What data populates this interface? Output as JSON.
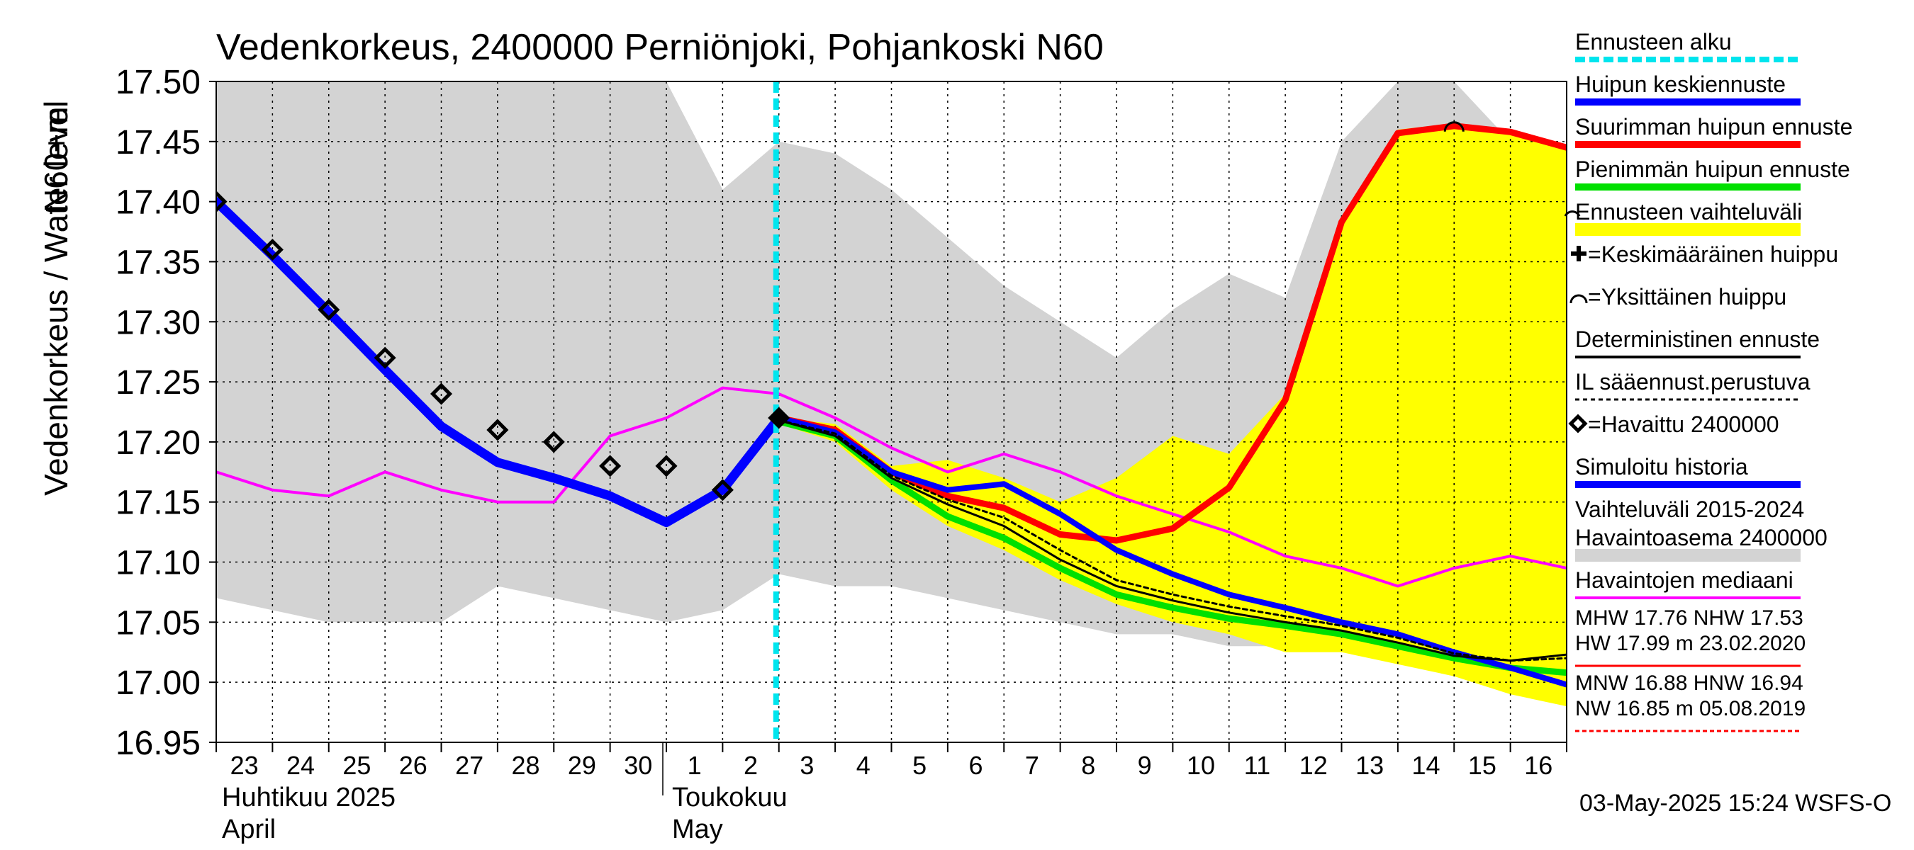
{
  "chart_data": {
    "type": "line",
    "title": "Vedenkorkeus, 2400000 Perniönjoki, Pohjankoski N60",
    "ylabel_lines": [
      "Vedenkorkeus / Water level",
      "N60+m"
    ],
    "ylim": [
      16.95,
      17.5
    ],
    "y_ticks": [
      "17.50",
      "17.45",
      "17.40",
      "17.35",
      "17.30",
      "17.25",
      "17.20",
      "17.15",
      "17.10",
      "17.05",
      "17.00",
      "16.95"
    ],
    "x_days": [
      "23",
      "24",
      "25",
      "26",
      "27",
      "28",
      "29",
      "30",
      "1",
      "2",
      "3",
      "4",
      "5",
      "6",
      "7",
      "8",
      "9",
      "10",
      "11",
      "12",
      "13",
      "14",
      "15",
      "16"
    ],
    "month_labels": [
      {
        "fi": "Huhtikuu  2025",
        "en": "April",
        "start_index": 0
      },
      {
        "fi": "Toukokuu",
        "en": "May",
        "start_index": 8
      }
    ],
    "forecast_start_x": 9.95,
    "range_band": {
      "x": [
        0,
        1,
        2,
        3,
        4,
        5,
        6,
        7,
        8,
        9,
        10,
        11,
        12,
        13,
        14,
        15,
        16,
        17,
        18,
        19,
        20,
        21,
        22,
        23,
        24
      ],
      "upper": [
        17.5,
        17.5,
        17.5,
        17.5,
        17.5,
        17.5,
        17.5,
        17.5,
        17.5,
        17.41,
        17.45,
        17.44,
        17.41,
        17.37,
        17.33,
        17.3,
        17.27,
        17.31,
        17.34,
        17.32,
        17.45,
        17.5,
        17.5,
        17.45,
        17.4
      ],
      "lower": [
        17.07,
        17.06,
        17.05,
        17.05,
        17.05,
        17.08,
        17.07,
        17.06,
        17.05,
        17.06,
        17.09,
        17.08,
        17.08,
        17.07,
        17.06,
        17.05,
        17.04,
        17.04,
        17.03,
        17.03,
        17.03,
        17.03,
        17.02,
        17.02,
        17.02
      ]
    },
    "forecast_band": {
      "x": [
        10,
        11,
        12,
        13,
        14,
        15,
        16,
        17,
        18,
        19,
        20,
        21,
        22,
        23,
        24
      ],
      "upper": [
        17.22,
        17.215,
        17.18,
        17.185,
        17.17,
        17.15,
        17.17,
        17.205,
        17.19,
        17.24,
        17.38,
        17.46,
        17.465,
        17.46,
        17.445
      ],
      "lower": [
        17.215,
        17.2,
        17.16,
        17.13,
        17.11,
        17.085,
        17.065,
        17.05,
        17.04,
        17.025,
        17.025,
        17.015,
        17.005,
        16.99,
        16.98
      ]
    },
    "series": [
      {
        "name": "Havaittu 2400000",
        "role": "observed",
        "color": "#000000",
        "x": [
          0,
          1,
          2,
          3,
          4,
          5,
          6,
          7,
          8,
          9,
          10
        ],
        "y": [
          17.4,
          17.36,
          17.31,
          17.27,
          17.24,
          17.21,
          17.2,
          17.18,
          17.18,
          17.16,
          17.22
        ]
      },
      {
        "name": "Havaintojen mediaani",
        "role": "median",
        "color": "#ff00ff",
        "x": [
          0,
          1,
          2,
          3,
          4,
          5,
          6,
          7,
          8,
          9,
          10,
          11,
          12,
          13,
          14,
          15,
          16,
          17,
          18,
          19,
          20,
          21,
          22,
          23,
          24
        ],
        "y": [
          17.175,
          17.16,
          17.155,
          17.175,
          17.16,
          17.15,
          17.15,
          17.205,
          17.22,
          17.245,
          17.24,
          17.22,
          17.195,
          17.175,
          17.19,
          17.175,
          17.155,
          17.14,
          17.125,
          17.105,
          17.095,
          17.08,
          17.095,
          17.105,
          17.095
        ]
      },
      {
        "name": "Pienimmän huipun ennuste",
        "role": "min-peak",
        "color": "#00e000",
        "x": [
          10,
          11,
          12,
          13,
          14,
          15,
          16,
          17,
          18,
          19,
          20,
          21,
          22,
          23,
          24
        ],
        "y": [
          17.217,
          17.205,
          17.168,
          17.138,
          17.12,
          17.095,
          17.073,
          17.062,
          17.053,
          17.047,
          17.04,
          17.03,
          17.02,
          17.012,
          17.008
        ]
      },
      {
        "name": "Suurimman huipun ennuste",
        "role": "max-peak",
        "color": "#ff0000",
        "x": [
          10,
          11,
          12,
          13,
          14,
          15,
          16,
          17,
          18,
          19,
          20,
          21,
          22,
          23,
          24
        ],
        "y": [
          17.22,
          17.21,
          17.175,
          17.155,
          17.145,
          17.123,
          17.118,
          17.128,
          17.162,
          17.235,
          17.383,
          17.457,
          17.463,
          17.458,
          17.445
        ]
      },
      {
        "name": "Simuloitu historia",
        "role": "simulated",
        "color": "#0000ff",
        "x": [
          0,
          1,
          2,
          3,
          4,
          5,
          6,
          7,
          8,
          9,
          10
        ],
        "y": [
          17.4,
          17.355,
          17.308,
          17.26,
          17.213,
          17.183,
          17.17,
          17.155,
          17.133,
          17.16,
          17.22
        ]
      },
      {
        "name": "Huipun keskiennuste",
        "role": "mean-peak",
        "color": "#0000ff",
        "x": [
          10,
          11,
          12,
          13,
          14,
          15,
          16,
          17,
          18,
          19,
          20,
          21,
          22,
          23,
          24
        ],
        "y": [
          17.22,
          17.208,
          17.175,
          17.16,
          17.165,
          17.14,
          17.11,
          17.09,
          17.073,
          17.062,
          17.05,
          17.04,
          17.025,
          17.012,
          16.998
        ]
      },
      {
        "name": "Deterministinen ennuste",
        "role": "deterministic",
        "color": "#000000",
        "x": [
          10,
          11,
          12,
          13,
          14,
          15,
          16,
          17,
          18,
          19,
          20,
          21,
          22,
          23,
          24
        ],
        "y": [
          17.218,
          17.205,
          17.17,
          17.148,
          17.13,
          17.102,
          17.08,
          17.068,
          17.058,
          17.05,
          17.043,
          17.033,
          17.022,
          17.018,
          17.023
        ]
      },
      {
        "name": "IL sääennust.perustuva",
        "role": "weather-based",
        "color": "#000000",
        "x": [
          10,
          11,
          12,
          13,
          14,
          15,
          16,
          17,
          18,
          19,
          20,
          21,
          22,
          23,
          24
        ],
        "y": [
          17.218,
          17.207,
          17.172,
          17.152,
          17.137,
          17.11,
          17.085,
          17.073,
          17.063,
          17.055,
          17.047,
          17.037,
          17.024,
          17.018,
          17.02
        ]
      }
    ],
    "peak_marker": {
      "x": 22,
      "y": 17.463
    },
    "legend_position": "right",
    "legend": [
      {
        "label": "Ennusteen alku",
        "style": "dashed",
        "color": "#00e5ee"
      },
      {
        "label": "Huipun keskiennuste",
        "style": "line",
        "color": "#0000ff"
      },
      {
        "label": "Suurimman huipun ennuste",
        "style": "line",
        "color": "#ff0000"
      },
      {
        "label": "Pienimmän huipun ennuste",
        "style": "line",
        "color": "#00e000"
      },
      {
        "label": "Ennusteen vaihteluväli",
        "style": "band",
        "color": "#ffff00"
      },
      {
        "label": "=Keskimääräinen huippu",
        "style": "plus",
        "color": "#000000"
      },
      {
        "label": "=Yksittäinen huippu",
        "style": "arc",
        "color": "#000000"
      },
      {
        "label": "Deterministinen ennuste",
        "style": "thin",
        "color": "#000000"
      },
      {
        "label": "IL sääennust.perustuva",
        "style": "dotted",
        "color": "#000000"
      },
      {
        "label": "=Havaittu 2400000",
        "style": "diamond",
        "color": "#000000"
      },
      {
        "label": "Simuloitu historia",
        "style": "line",
        "color": "#0000ff"
      },
      {
        "label": "Vaihteluväli 2015-2024\n Havaintoasema 2400000",
        "style": "band",
        "color": "#d3d3d3"
      },
      {
        "label": "Havaintojen mediaani",
        "style": "thin",
        "color": "#ff00ff"
      }
    ],
    "stats": [
      {
        "lines": [
          "MHW  17.76 NHW  17.53",
          "HW  17.99 m 23.02.2020"
        ],
        "color": "#ff0000",
        "style": "solid"
      },
      {
        "lines": [
          "MNW  16.88 HNW  16.94",
          "NW  16.85 m 05.08.2019"
        ],
        "color": "#ff0000",
        "style": "dashed"
      }
    ],
    "timestamp": "03-May-2025 15:24 WSFS-O",
    "colors": {
      "range_band": "#d3d3d3",
      "forecast_band": "#ffff00",
      "forecast_start": "#00e5ee",
      "grid": "#000000"
    }
  }
}
